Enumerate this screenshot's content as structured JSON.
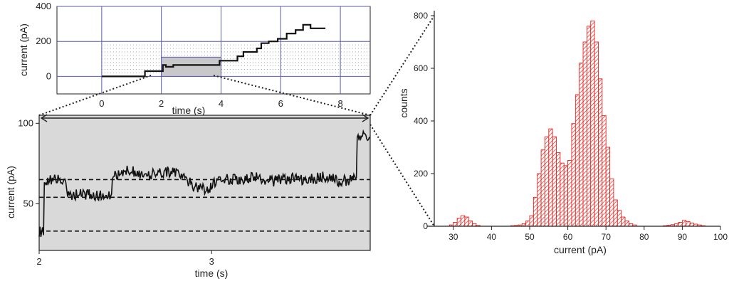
{
  "colors": {
    "trace": "#111111",
    "grid": "#5b5bb0",
    "zoom_fill": "#d9d9d9",
    "hist_bar": "#e8231e",
    "axis": "#222222"
  },
  "chart_data": [
    {
      "id": "top",
      "type": "line",
      "xlabel": "time (s)",
      "ylabel": "current (pA)",
      "xlim": [
        -1.5,
        9
      ],
      "ylim": [
        -100,
        400
      ],
      "xticks": [
        "0",
        "2",
        "4",
        "6",
        "8"
      ],
      "xtick_values": [
        0,
        2,
        4,
        6,
        8
      ],
      "yticks": [
        "0",
        "200",
        "400"
      ],
      "ytick_values": [
        0,
        200,
        400
      ],
      "grid": true,
      "highlight_region": {
        "x": [
          2,
          4
        ],
        "y": [
          0,
          110
        ]
      },
      "series": [
        {
          "x": [
            0,
            1.45,
            1.45,
            2.05,
            2.05,
            2.15,
            2.15,
            2.4,
            2.4,
            3.95,
            3.95,
            4.55,
            4.55,
            4.75,
            4.75,
            5.2,
            5.2,
            5.35,
            5.35,
            5.6,
            5.6,
            5.9,
            5.9,
            6.2,
            6.2,
            6.5,
            6.5,
            6.75,
            6.75,
            7.0,
            7.0,
            7.5
          ],
          "y": [
            0,
            0,
            30,
            30,
            65,
            65,
            55,
            55,
            65,
            65,
            90,
            90,
            115,
            115,
            140,
            140,
            160,
            160,
            190,
            190,
            200,
            200,
            215,
            215,
            245,
            245,
            265,
            265,
            295,
            295,
            275,
            275
          ]
        }
      ]
    },
    {
      "id": "zoom",
      "type": "line",
      "xlabel": "time (s)",
      "ylabel": "current (pA)",
      "xlim": [
        2,
        3.92
      ],
      "ylim": [
        21,
        105
      ],
      "xticks": [
        "2",
        "3"
      ],
      "xtick_values": [
        2,
        3
      ],
      "yticks": [
        "50",
        "100"
      ],
      "ytick_values": [
        50,
        100
      ],
      "reference_levels": [
        33,
        54,
        65
      ],
      "series": [
        {
          "x": [
            2.0,
            2.02,
            2.04,
            2.05,
            2.15,
            2.16,
            2.42,
            2.43,
            2.52,
            2.6,
            2.75,
            2.85,
            2.9,
            2.98,
            3.05,
            3.15,
            3.25,
            3.35,
            3.45,
            3.55,
            3.65,
            3.75,
            3.84,
            3.85,
            3.92
          ],
          "y": [
            33,
            32,
            64,
            65,
            64,
            56,
            55,
            68,
            71,
            68,
            70,
            66,
            60,
            59,
            66,
            65,
            67,
            64,
            66,
            65,
            67,
            64,
            66,
            92,
            91
          ]
        }
      ]
    },
    {
      "id": "hist",
      "type": "bar",
      "xlabel": "current (pA)",
      "ylabel": "counts",
      "xlim": [
        25,
        100
      ],
      "ylim": [
        0,
        800
      ],
      "xticks": [
        "30",
        "40",
        "50",
        "60",
        "70",
        "80",
        "90",
        "100"
      ],
      "xtick_values": [
        30,
        40,
        50,
        60,
        70,
        80,
        90,
        100
      ],
      "yticks": [
        "0",
        "200",
        "400",
        "600",
        "800"
      ],
      "ytick_values": [
        0,
        200,
        400,
        600,
        800
      ],
      "bin_width": 1,
      "bin_starts": [
        29,
        30,
        31,
        32,
        33,
        34,
        35,
        36,
        45,
        46,
        47,
        48,
        49,
        50,
        51,
        52,
        53,
        54,
        55,
        56,
        57,
        58,
        59,
        60,
        61,
        62,
        63,
        64,
        65,
        66,
        67,
        68,
        69,
        70,
        71,
        72,
        73,
        74,
        75,
        76,
        77,
        85,
        86,
        87,
        88,
        89,
        90,
        91,
        92,
        93,
        94,
        95
      ],
      "counts": [
        5,
        15,
        30,
        40,
        35,
        20,
        10,
        3,
        2,
        3,
        5,
        10,
        20,
        40,
        110,
        200,
        290,
        340,
        370,
        340,
        280,
        240,
        230,
        250,
        390,
        500,
        620,
        700,
        760,
        780,
        700,
        560,
        420,
        300,
        180,
        100,
        60,
        35,
        20,
        10,
        5,
        2,
        4,
        6,
        10,
        15,
        22,
        18,
        12,
        8,
        5,
        2
      ]
    }
  ]
}
